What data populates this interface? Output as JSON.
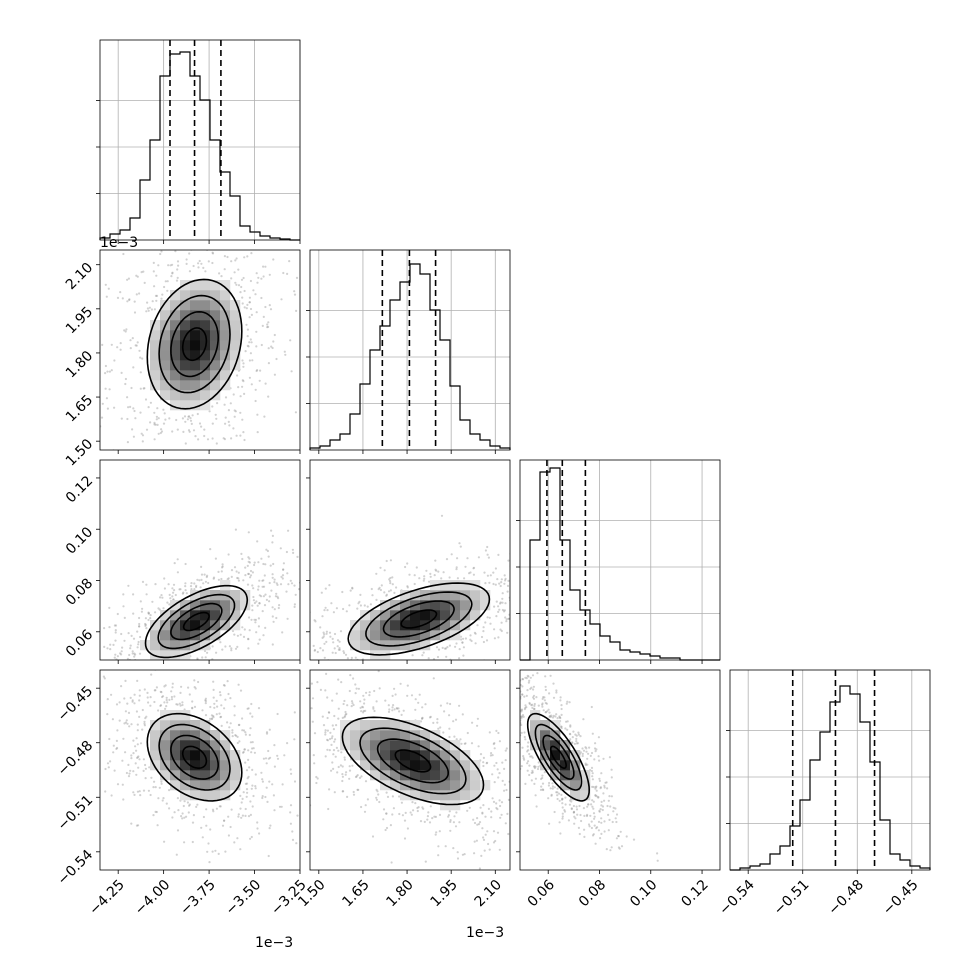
{
  "chart_data": {
    "type": "corner",
    "grid": true,
    "parameters": [
      {
        "range": [
          -4.35,
          -3.25
        ],
        "ticks": [
          -4.25,
          -4.0,
          -3.75,
          -3.5,
          -3.25
        ],
        "tick_labels": [
          "−4.25",
          "−4.00",
          "−3.75",
          "−3.50",
          "−3.25"
        ],
        "offset_label": "1e−3",
        "median": -3.83,
        "q16": -3.965,
        "q84": -3.685
      },
      {
        "range": [
          1.47,
          2.15
        ],
        "ticks": [
          1.5,
          1.65,
          1.8,
          1.95,
          2.1
        ],
        "tick_labels": [
          "1.50",
          "1.65",
          "1.80",
          "1.95",
          "2.10"
        ],
        "offset_label": "1e−3",
        "median": 1.808,
        "q16": 1.716,
        "q84": 1.897
      },
      {
        "range": [
          0.049,
          0.127
        ],
        "ticks": [
          0.06,
          0.08,
          0.1,
          0.12
        ],
        "tick_labels": [
          "0.06",
          "0.08",
          "0.10",
          "0.12"
        ],
        "offset_label": "",
        "median": 0.0655,
        "q16": 0.0595,
        "q84": 0.0745
      },
      {
        "range": [
          -0.55,
          -0.44
        ],
        "ticks": [
          -0.54,
          -0.51,
          -0.48,
          -0.45
        ],
        "tick_labels": [
          "−0.54",
          "−0.51",
          "−0.48",
          "−0.45"
        ],
        "offset_label": "",
        "median": -0.492,
        "q16": -0.5155,
        "q84": -0.4705
      }
    ],
    "histograms": [
      [
        0.01,
        0.03,
        0.05,
        0.11,
        0.3,
        0.5,
        0.82,
        0.93,
        0.94,
        0.82,
        0.7,
        0.5,
        0.34,
        0.22,
        0.07,
        0.04,
        0.02,
        0.01,
        0.005,
        0.0
      ],
      [
        0.01,
        0.02,
        0.05,
        0.08,
        0.18,
        0.33,
        0.5,
        0.62,
        0.75,
        0.84,
        0.93,
        0.88,
        0.7,
        0.55,
        0.32,
        0.15,
        0.08,
        0.05,
        0.02,
        0.01
      ],
      [
        0.0,
        0.6,
        0.94,
        0.96,
        0.6,
        0.35,
        0.25,
        0.18,
        0.12,
        0.09,
        0.05,
        0.04,
        0.03,
        0.02,
        0.01,
        0.01,
        0.0,
        0.0,
        0.0,
        0.0
      ],
      [
        0.0,
        0.01,
        0.02,
        0.03,
        0.08,
        0.12,
        0.22,
        0.35,
        0.55,
        0.69,
        0.84,
        0.92,
        0.88,
        0.74,
        0.54,
        0.25,
        0.08,
        0.05,
        0.02,
        0.01
      ]
    ],
    "pairs": [
      {
        "x": 0,
        "y": 1,
        "center": [
          -3.83,
          1.83
        ],
        "sx": 0.13,
        "sy": 0.11,
        "rho": 0.2
      },
      {
        "x": 0,
        "y": 2,
        "center": [
          -3.82,
          0.064
        ],
        "sx": 0.14,
        "sy": 0.007,
        "rho": 0.6
      },
      {
        "x": 1,
        "y": 2,
        "center": [
          1.84,
          0.065
        ],
        "sx": 0.12,
        "sy": 0.007,
        "rho": 0.55
      },
      {
        "x": 0,
        "y": 3,
        "center": [
          -3.83,
          -0.488
        ],
        "sx": 0.13,
        "sy": 0.012,
        "rho": -0.35
      },
      {
        "x": 1,
        "y": 3,
        "center": [
          1.82,
          -0.49
        ],
        "sx": 0.12,
        "sy": 0.012,
        "rho": -0.55
      },
      {
        "x": 2,
        "y": 3,
        "center": [
          0.064,
          -0.488
        ],
        "sx": 0.006,
        "sy": 0.012,
        "rho": -0.75
      }
    ]
  }
}
